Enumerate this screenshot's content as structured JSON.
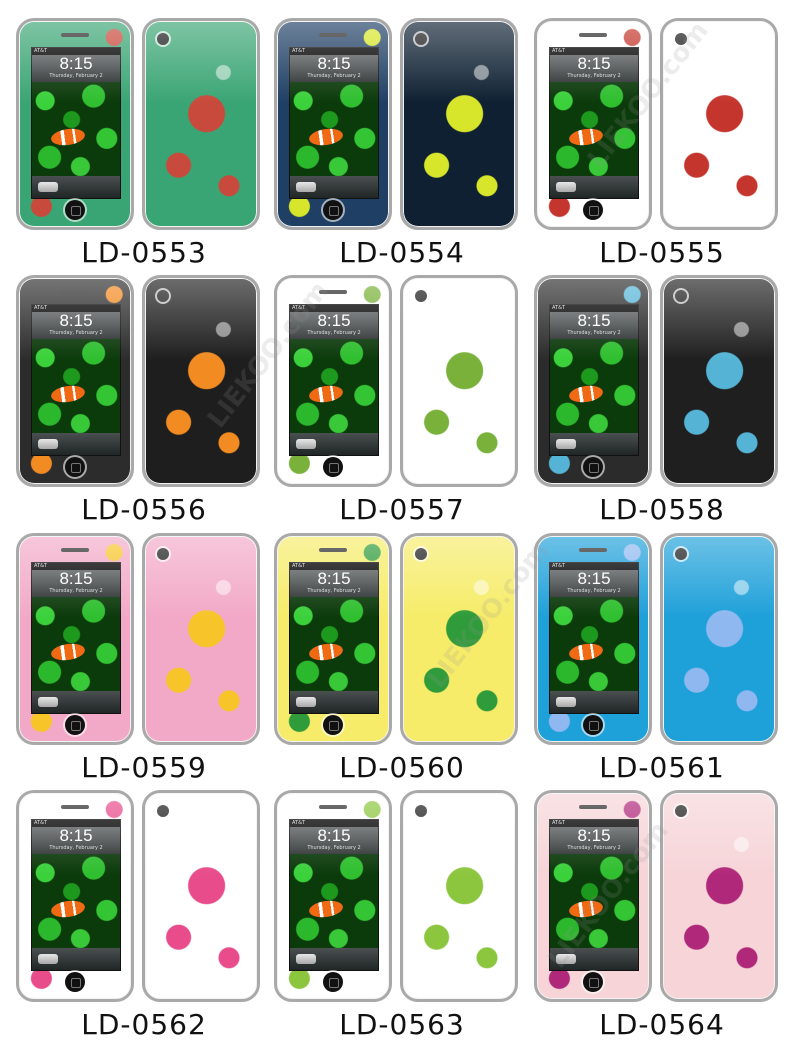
{
  "lock_screen": {
    "time": "8:15",
    "date": "Thursday, February 2",
    "carrier": "AT&T"
  },
  "watermark_text": "LIEKOO.com",
  "products": [
    {
      "code": "LD-0553",
      "front": "#3aa574",
      "back": "#3aa574",
      "accent": "#c84a3c"
    },
    {
      "code": "LD-0554",
      "front": "#1f3f64",
      "back": "#0e2032",
      "accent": "#d7e62a"
    },
    {
      "code": "LD-0555",
      "front": "#ffffff",
      "back": "#ffffff",
      "accent": "#c4362d"
    },
    {
      "code": "LD-0556",
      "front": "#2c2c2c",
      "back": "#1e1e1e",
      "accent": "#f28b22"
    },
    {
      "code": "LD-0557",
      "front": "#ffffff",
      "back": "#ffffff",
      "accent": "#79b13a"
    },
    {
      "code": "LD-0558",
      "front": "#2b2b2b",
      "back": "#1f1f1f",
      "accent": "#55b4d6"
    },
    {
      "code": "LD-0559",
      "front": "#f2a9c7",
      "back": "#f2a9c7",
      "accent": "#f7c52a"
    },
    {
      "code": "LD-0560",
      "front": "#f6ec69",
      "back": "#f6ec69",
      "accent": "#2f9b3a"
    },
    {
      "code": "LD-0561",
      "front": "#1ea0d9",
      "back": "#1ea0d9",
      "accent": "#8fb8f0"
    },
    {
      "code": "LD-0562",
      "front": "#ffffff",
      "back": "#ffffff",
      "accent": "#e84c8b"
    },
    {
      "code": "LD-0563",
      "front": "#ffffff",
      "back": "#ffffff",
      "accent": "#8cc63f"
    },
    {
      "code": "LD-0564",
      "front": "#f6d4d8",
      "back": "#f6d4d8",
      "accent": "#b0287a"
    }
  ]
}
